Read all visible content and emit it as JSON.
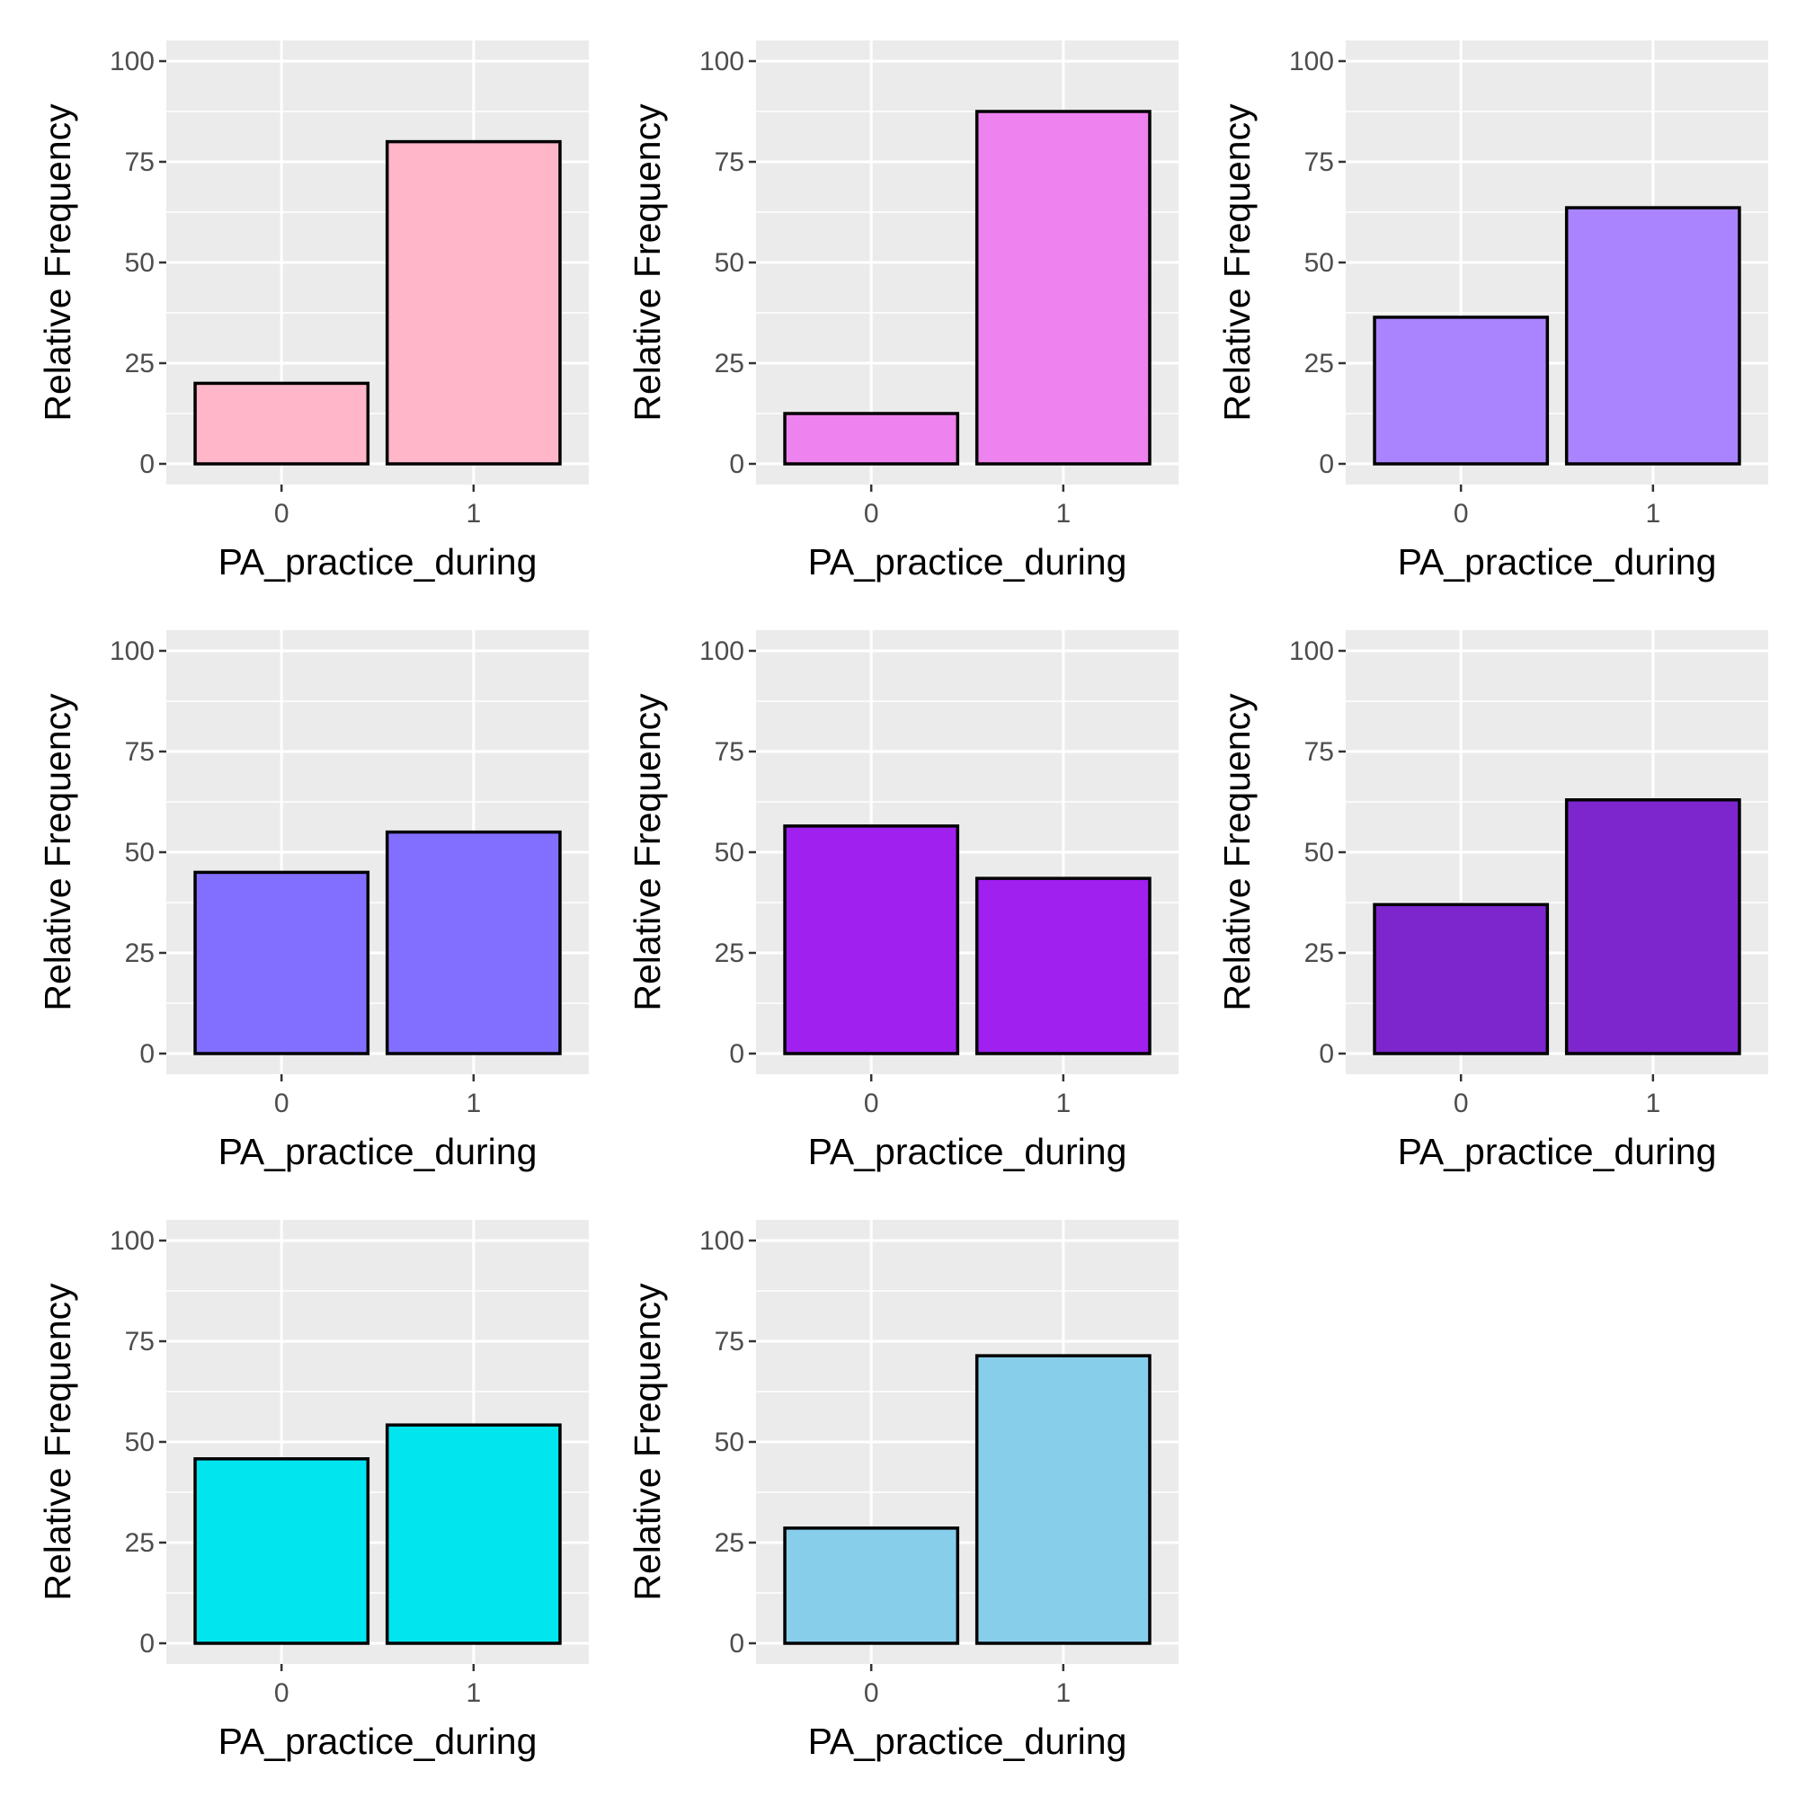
{
  "chart_data": [
    {
      "type": "bar",
      "categories": [
        "0",
        "1"
      ],
      "values": [
        20.0,
        80.0
      ],
      "fill": "#FFB6C8",
      "xlabel": "PA_practice_during",
      "ylabel": "Relative Frequency",
      "ylim": [
        0,
        100
      ],
      "yticks": [
        0,
        25,
        50,
        75,
        100
      ],
      "grid": true
    },
    {
      "type": "bar",
      "categories": [
        "0",
        "1"
      ],
      "values": [
        12.5,
        87.5
      ],
      "fill": "#EE82EE",
      "xlabel": "PA_practice_during",
      "ylabel": "Relative Frequency",
      "ylim": [
        0,
        100
      ],
      "yticks": [
        0,
        25,
        50,
        75,
        100
      ],
      "grid": true
    },
    {
      "type": "bar",
      "categories": [
        "0",
        "1"
      ],
      "values": [
        36.4,
        63.6
      ],
      "fill": "#AA84FF",
      "xlabel": "PA_practice_during",
      "ylabel": "Relative Frequency",
      "ylim": [
        0,
        100
      ],
      "yticks": [
        0,
        25,
        50,
        75,
        100
      ],
      "grid": true
    },
    {
      "type": "bar",
      "categories": [
        "0",
        "1"
      ],
      "values": [
        45.0,
        55.0
      ],
      "fill": "#836FFF",
      "xlabel": "PA_practice_during",
      "ylabel": "Relative Frequency",
      "ylim": [
        0,
        100
      ],
      "yticks": [
        0,
        25,
        50,
        75,
        100
      ],
      "grid": true
    },
    {
      "type": "bar",
      "categories": [
        "0",
        "1"
      ],
      "values": [
        56.5,
        43.5
      ],
      "fill": "#A020F0",
      "xlabel": "PA_practice_during",
      "ylabel": "Relative Frequency",
      "ylim": [
        0,
        100
      ],
      "yticks": [
        0,
        25,
        50,
        75,
        100
      ],
      "grid": true
    },
    {
      "type": "bar",
      "categories": [
        "0",
        "1"
      ],
      "values": [
        37.0,
        63.0
      ],
      "fill": "#7D26CD",
      "xlabel": "PA_practice_during",
      "ylabel": "Relative Frequency",
      "ylim": [
        0,
        100
      ],
      "yticks": [
        0,
        25,
        50,
        75,
        100
      ],
      "grid": true
    },
    {
      "type": "bar",
      "categories": [
        "0",
        "1"
      ],
      "values": [
        45.8,
        54.2
      ],
      "fill": "#00E5EE",
      "xlabel": "PA_practice_during",
      "ylabel": "Relative Frequency",
      "ylim": [
        0,
        100
      ],
      "yticks": [
        0,
        25,
        50,
        75,
        100
      ],
      "grid": true
    },
    {
      "type": "bar",
      "categories": [
        "0",
        "1"
      ],
      "values": [
        28.6,
        71.4
      ],
      "fill": "#87CEEB",
      "xlabel": "PA_practice_during",
      "ylabel": "Relative Frequency",
      "ylim": [
        0,
        100
      ],
      "yticks": [
        0,
        25,
        50,
        75,
        100
      ],
      "grid": true
    }
  ]
}
